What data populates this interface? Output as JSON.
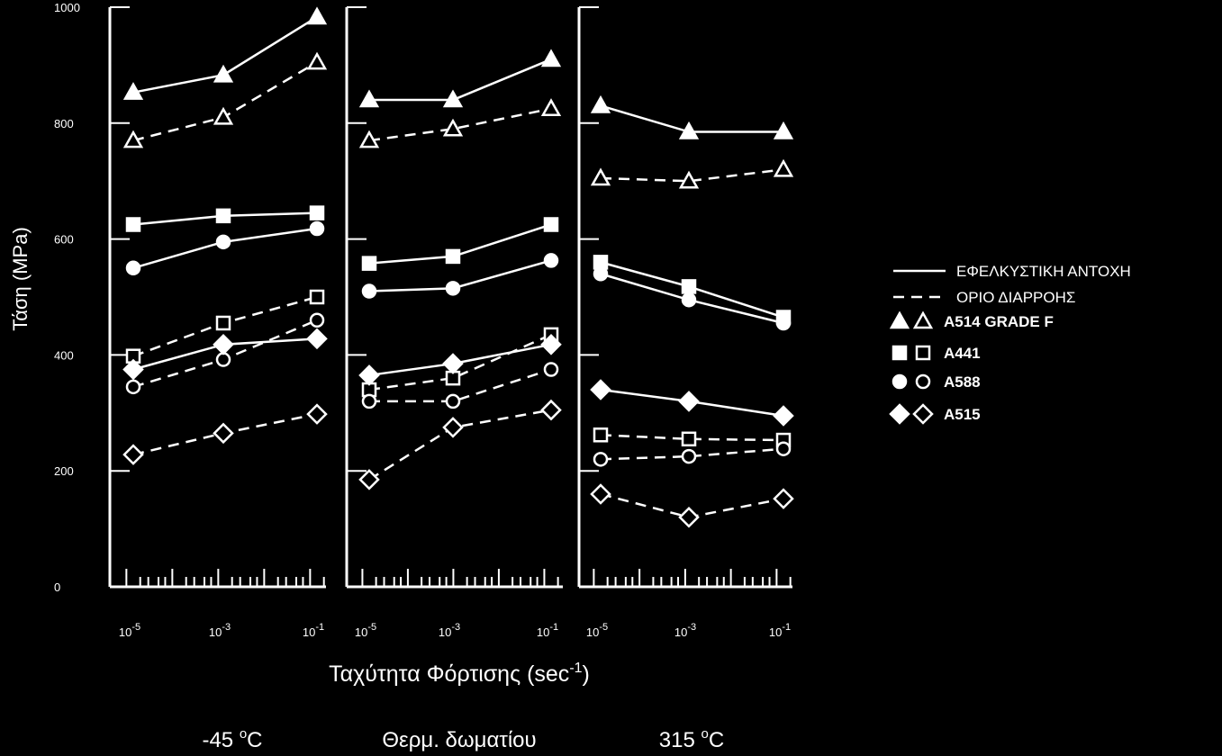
{
  "chart_data": {
    "type": "line",
    "ylabel": "Τάση (MPa)",
    "xlabel": "Ταχύτητα Φόρτισης (sec",
    "xlabel_sup": "-1",
    "xlabel_close": ")",
    "ylim": [
      0,
      1000
    ],
    "yticks": [
      "0",
      "200",
      "400",
      "600",
      "800",
      "1000"
    ],
    "xscale": "log",
    "x": [
      1e-05,
      0.001,
      0.1
    ],
    "xticks_base": "10",
    "xticks_exp": [
      "-5",
      "-3",
      "-1"
    ],
    "panels": [
      {
        "title_main": "-45 ",
        "title_sup": "o",
        "title_unit": "C",
        "series": [
          {
            "material": "A514 GRADE F",
            "kind": "tensile",
            "values": [
              853,
              883,
              983
            ]
          },
          {
            "material": "A514 GRADE F",
            "kind": "yield",
            "values": [
              770,
              810,
              905
            ]
          },
          {
            "material": "A441",
            "kind": "tensile",
            "values": [
              625,
              640,
              645
            ]
          },
          {
            "material": "A441",
            "kind": "yield",
            "values": [
              398,
              455,
              500
            ]
          },
          {
            "material": "A588",
            "kind": "tensile",
            "values": [
              550,
              595,
              618
            ]
          },
          {
            "material": "A588",
            "kind": "yield",
            "values": [
              345,
              392,
              460
            ]
          },
          {
            "material": "A515",
            "kind": "tensile",
            "values": [
              375,
              418,
              428
            ]
          },
          {
            "material": "A515",
            "kind": "yield",
            "values": [
              228,
              265,
              298
            ]
          }
        ]
      },
      {
        "title_main": "Θερμ. δωματίου",
        "title_sup": "",
        "title_unit": "",
        "series": [
          {
            "material": "A514 GRADE F",
            "kind": "tensile",
            "values": [
              840,
              840,
              910
            ]
          },
          {
            "material": "A514 GRADE F",
            "kind": "yield",
            "values": [
              770,
              790,
              825
            ]
          },
          {
            "material": "A441",
            "kind": "tensile",
            "values": [
              558,
              570,
              625
            ]
          },
          {
            "material": "A441",
            "kind": "yield",
            "values": [
              340,
              360,
              435
            ]
          },
          {
            "material": "A588",
            "kind": "tensile",
            "values": [
              510,
              515,
              563
            ]
          },
          {
            "material": "A588",
            "kind": "yield",
            "values": [
              320,
              320,
              375
            ]
          },
          {
            "material": "A515",
            "kind": "tensile",
            "values": [
              365,
              385,
              418
            ]
          },
          {
            "material": "A515",
            "kind": "yield",
            "values": [
              185,
              275,
              305
            ]
          }
        ]
      },
      {
        "title_main": "315 ",
        "title_sup": "o",
        "title_unit": "C",
        "series": [
          {
            "material": "A514 GRADE F",
            "kind": "tensile",
            "values": [
              830,
              785,
              785
            ]
          },
          {
            "material": "A514 GRADE F",
            "kind": "yield",
            "values": [
              705,
              700,
              720
            ]
          },
          {
            "material": "A441",
            "kind": "tensile",
            "values": [
              560,
              518,
              465
            ]
          },
          {
            "material": "A441",
            "kind": "yield",
            "values": [
              262,
              255,
              253
            ]
          },
          {
            "material": "A588",
            "kind": "tensile",
            "values": [
              540,
              495,
              455
            ]
          },
          {
            "material": "A588",
            "kind": "yield",
            "values": [
              220,
              225,
              238
            ]
          },
          {
            "material": "A515",
            "kind": "tensile",
            "values": [
              340,
              320,
              295
            ]
          },
          {
            "material": "A515",
            "kind": "yield",
            "values": [
              160,
              120,
              152
            ]
          }
        ]
      }
    ],
    "legend": {
      "position": "right",
      "tensile_label": "ΕΦΕΛΚΥΣΤΙΚΗ ΑΝΤΟΧΗ",
      "yield_label": "ΟΡΙΟ ΔΙΑΡΡΟΗΣ",
      "materials": [
        {
          "name": "A514 GRADE F",
          "marker": "triangle"
        },
        {
          "name": "A441",
          "marker": "square"
        },
        {
          "name": "A588",
          "marker": "circle"
        },
        {
          "name": "A515",
          "marker": "diamond"
        }
      ]
    },
    "colors": {
      "background": "#000000",
      "foreground": "#ffffff"
    }
  }
}
